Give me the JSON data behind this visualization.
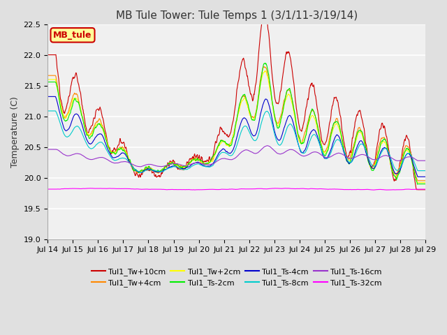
{
  "title": "MB Tule Tower: Tule Temps 1 (3/1/11-3/19/14)",
  "ylabel": "Temperature (C)",
  "ylim": [
    19.0,
    22.5
  ],
  "yticks": [
    19.0,
    19.5,
    20.0,
    20.5,
    21.0,
    21.5,
    22.0,
    22.5
  ],
  "xtick_labels": [
    "Jul 14",
    "Jul 15",
    "Jul 16",
    "Jul 17",
    "Jul 18",
    "Jul 19",
    "Jul 20",
    "Jul 21",
    "Jul 22",
    "Jul 23",
    "Jul 24",
    "Jul 25",
    "Jul 26",
    "Jul 27",
    "Jul 28",
    "Jul 29"
  ],
  "n_points": 960,
  "series": [
    {
      "name": "Tul1_Tw+10cm",
      "color": "#cc0000"
    },
    {
      "name": "Tul1_Tw+4cm",
      "color": "#ff8800"
    },
    {
      "name": "Tul1_Tw+2cm",
      "color": "#ffff00"
    },
    {
      "name": "Tul1_Ts-2cm",
      "color": "#00ee00"
    },
    {
      "name": "Tul1_Ts-4cm",
      "color": "#0000cc"
    },
    {
      "name": "Tul1_Ts-8cm",
      "color": "#00cccc"
    },
    {
      "name": "Tul1_Ts-16cm",
      "color": "#9933cc"
    },
    {
      "name": "Tul1_Ts-32cm",
      "color": "#ff00ff"
    }
  ],
  "bg_color": "#e0e0e0",
  "plot_bg": "#f0f0f0",
  "annotation_box": {
    "text": "MB_tule",
    "facecolor": "#ffff99",
    "edgecolor": "#cc0000"
  },
  "title_fontsize": 11,
  "tick_fontsize": 8,
  "legend_fontsize": 8
}
